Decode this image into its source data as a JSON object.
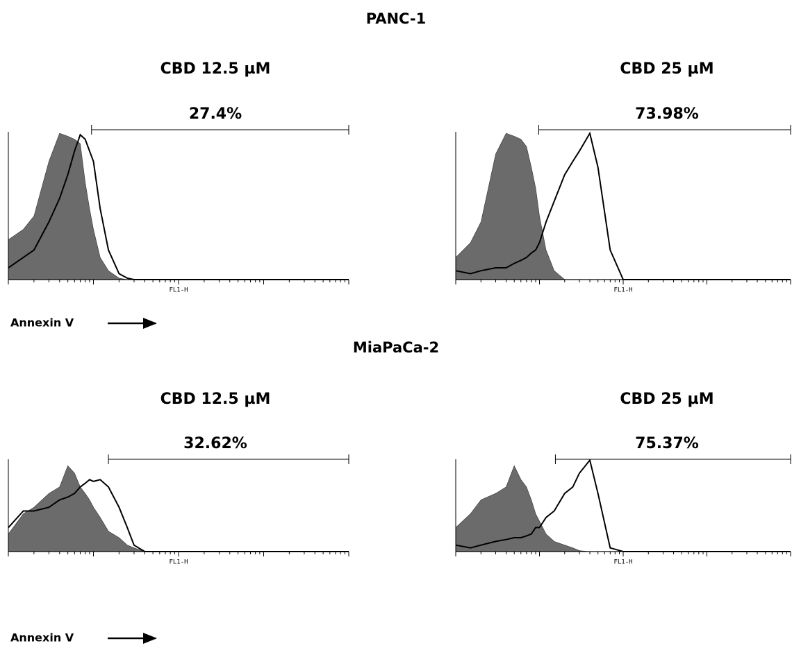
{
  "groups": [
    {
      "title": "PANC-1",
      "x_caption": "Annexin V"
    },
    {
      "title": "MiaPaCa-2",
      "x_caption": "Annexin V"
    }
  ],
  "chart_data": [
    {
      "type": "flow-histogram",
      "title": "CBD 12.5 µM",
      "xlabel": "FL1-H",
      "log_x": true,
      "xlim": [
        1,
        10000
      ],
      "ylim": [
        0,
        100
      ],
      "xticks": [
        1,
        10,
        100,
        1000,
        10000
      ],
      "x": [
        1,
        1.5,
        2,
        3,
        4,
        5,
        6,
        7,
        8,
        9,
        10,
        12,
        15,
        20,
        25,
        30,
        40,
        50,
        70,
        100,
        10000
      ],
      "gate": {
        "range": [
          9.5,
          10000
        ],
        "value": 27.4,
        "value_label": "27.4%"
      },
      "series": [
        {
          "style": "filled",
          "color": "#6b6b6b",
          "values": [
            27,
            34,
            43,
            80,
            99,
            97,
            95,
            92,
            66,
            48,
            34,
            15,
            6,
            1,
            0,
            0,
            0,
            0,
            0,
            0,
            0
          ]
        },
        {
          "style": "line",
          "color": "#000000",
          "values": [
            8,
            15,
            20,
            39,
            55,
            71,
            87,
            98,
            95,
            87,
            80,
            48,
            20,
            4,
            1,
            0,
            0,
            0,
            0,
            0,
            0
          ]
        }
      ]
    },
    {
      "type": "flow-histogram",
      "title": "CBD 25 µM",
      "xlabel": "FL1-H",
      "log_x": true,
      "xlim": [
        1,
        10000
      ],
      "ylim": [
        0,
        100
      ],
      "xticks": [
        1,
        10,
        100,
        1000,
        10000
      ],
      "x": [
        1,
        1.5,
        2,
        3,
        4,
        5,
        6,
        7,
        8,
        9,
        10,
        12,
        15,
        20,
        25,
        30,
        40,
        50,
        70,
        100,
        10000
      ],
      "gate": {
        "range": [
          9.8,
          10000
        ],
        "value": 73.98,
        "value_label": "73.98%"
      },
      "series": [
        {
          "style": "filled",
          "color": "#6b6b6b",
          "values": [
            15,
            25,
            39,
            85,
            99,
            97,
            95,
            90,
            76,
            62,
            43,
            20,
            6,
            0,
            0,
            0,
            0,
            0,
            0,
            0,
            0
          ]
        },
        {
          "style": "line",
          "color": "#000000",
          "values": [
            6,
            4,
            6,
            8,
            8,
            11,
            13,
            15,
            18,
            20,
            25,
            39,
            53,
            71,
            80,
            87,
            99,
            76,
            20,
            0,
            0
          ]
        }
      ]
    },
    {
      "type": "flow-histogram",
      "title": "CBD 12.5 µM",
      "xlabel": "FL1-H",
      "log_x": true,
      "xlim": [
        1,
        10000
      ],
      "ylim": [
        0,
        100
      ],
      "xticks": [
        1,
        10,
        100,
        1000,
        10000
      ],
      "x": [
        1,
        1.5,
        2,
        3,
        4,
        5,
        6,
        7,
        8,
        9,
        10,
        12,
        15,
        20,
        25,
        30,
        40,
        50,
        70,
        100,
        10000
      ],
      "gate": {
        "range": [
          15,
          10000
        ],
        "value": 32.62,
        "value_label": "32.62%"
      },
      "series": [
        {
          "style": "filled",
          "color": "#6b6b6b",
          "values": [
            19,
            41,
            48,
            63,
            70,
            93,
            85,
            70,
            63,
            56,
            48,
            37,
            22,
            15,
            7,
            4,
            0,
            0,
            0,
            0,
            0
          ]
        },
        {
          "style": "line",
          "color": "#000000",
          "values": [
            26,
            44,
            44,
            48,
            56,
            59,
            63,
            70,
            74,
            78,
            76,
            78,
            70,
            48,
            26,
            7,
            0,
            0,
            0,
            0,
            0
          ]
        }
      ]
    },
    {
      "type": "flow-histogram",
      "title": "CBD 25 µM",
      "xlabel": "FL1-H",
      "log_x": true,
      "xlim": [
        1,
        10000
      ],
      "ylim": [
        0,
        100
      ],
      "xticks": [
        1,
        10,
        100,
        1000,
        10000
      ],
      "x": [
        1,
        1.5,
        2,
        3,
        4,
        5,
        6,
        7,
        8,
        9,
        10,
        12,
        15,
        20,
        25,
        30,
        40,
        50,
        70,
        100,
        10000
      ],
      "gate": {
        "range": [
          15.5,
          10000
        ],
        "value": 75.37,
        "value_label": "75.37%"
      },
      "series": [
        {
          "style": "filled",
          "color": "#6b6b6b",
          "values": [
            26,
            41,
            56,
            63,
            70,
            93,
            78,
            70,
            56,
            41,
            33,
            19,
            11,
            7,
            4,
            1,
            0,
            0,
            0,
            0,
            0
          ]
        },
        {
          "style": "line",
          "color": "#000000",
          "values": [
            7,
            4,
            7,
            11,
            13,
            15,
            15,
            17,
            19,
            26,
            26,
            37,
            44,
            63,
            70,
            85,
            99,
            63,
            4,
            0,
            0
          ]
        }
      ]
    }
  ]
}
